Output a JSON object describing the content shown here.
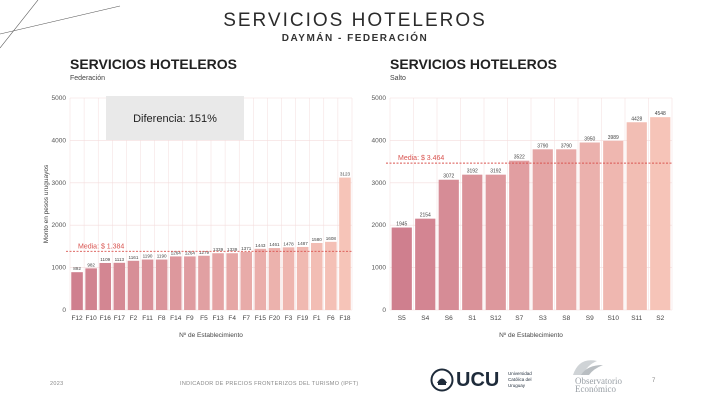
{
  "header": {
    "title": "SERVICIOS HOTELEROS",
    "subtitle": "DAYMÁN - FEDERACIÓN"
  },
  "chart_data": [
    {
      "type": "bar",
      "title": "SERVICIOS HOTELEROS",
      "subtitle": "Federación",
      "xlabel": "Nº de Establecimiento",
      "ylabel": "Monto en pesos uruguayos",
      "ylim": [
        0,
        5000
      ],
      "yticks": [
        0,
        1000,
        2000,
        3000,
        4000,
        5000
      ],
      "grid": true,
      "categories": [
        "F12",
        "F10",
        "F16",
        "F17",
        "F2",
        "F11",
        "F8",
        "F14",
        "F9",
        "F5",
        "F13",
        "F4",
        "F7",
        "F15",
        "F20",
        "F3",
        "F19",
        "F1",
        "F6",
        "F18"
      ],
      "values": [
        892,
        982,
        1109,
        1113,
        1161,
        1190,
        1190,
        1264,
        1264,
        1279,
        1339,
        1339,
        1371,
        1443,
        1461,
        1478,
        1487,
        1580,
        1608,
        3123
      ],
      "reference_line": {
        "label": "Media: $ 1.384",
        "value": 1384
      },
      "annotation": "Diferencia: 151%"
    },
    {
      "type": "bar",
      "title": "SERVICIOS HOTELEROS",
      "subtitle": "Salto",
      "xlabel": "Nº de Establecimiento",
      "ylabel": "",
      "ylim": [
        0,
        5000
      ],
      "yticks": [
        0,
        1000,
        2000,
        3000,
        4000,
        5000
      ],
      "grid": true,
      "categories": [
        "S5",
        "S4",
        "S6",
        "S1",
        "S12",
        "S7",
        "S3",
        "S8",
        "S9",
        "S10",
        "S11",
        "S2"
      ],
      "values": [
        1945,
        2154,
        3072,
        3192,
        3192,
        3522,
        3790,
        3790,
        3950,
        3989,
        4428,
        4548
      ],
      "reference_line": {
        "label": "Media: $ 3.464",
        "value": 3464
      }
    }
  ],
  "footer": {
    "year": "2023",
    "report": "INDICADOR DE PRECIOS FRONTERIZOS DEL TURISMO (IPFT)",
    "ucu_logo": "UCU",
    "ucu_text": "Universidad Católica del Uruguay",
    "obs_logo": "Observatorio Económico",
    "page": "7"
  },
  "colors": {
    "bar_start": "#cf7f8e",
    "bar_end": "#f6c4b8",
    "media_line": "#d9534f",
    "grid": "#f3dcdc"
  }
}
